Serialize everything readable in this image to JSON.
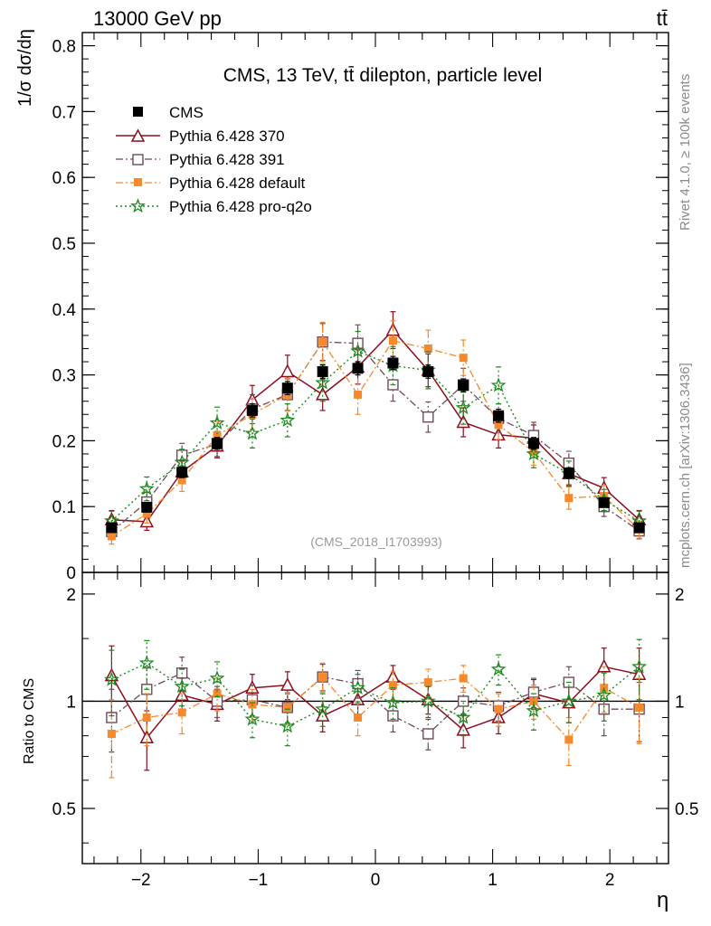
{
  "header": {
    "top_left": "13000 GeV pp",
    "top_right": "tt̄",
    "right_side_top": "Rivet 4.1.0, ≥ 100k events",
    "right_side_bottom": "mcplots.cern.ch [arXiv:1306.3436]",
    "watermark": "(CMS_2018_I1703993)"
  },
  "colors": {
    "cms": "#000000",
    "p370": "#8b0e1e",
    "p391": "#6e4a5c",
    "pdefault": "#f5892b",
    "pproq2o": "#1a8a1a"
  },
  "chart_data": [
    {
      "type": "scatter",
      "title": "CMS, 13 TeV, tt̄ dilepton, particle level",
      "ylabel": "1/σ dσ/dη",
      "xlabel": "",
      "xlim": [
        -2.5,
        2.5
      ],
      "ylim": [
        0,
        0.82
      ],
      "yticks": [
        0.1,
        0.2,
        0.3,
        0.4,
        0.5,
        0.6,
        0.7,
        0.8
      ],
      "ytick_labels": [
        "0.1",
        "0.2",
        "0.3",
        "0.4",
        "0.5",
        "0.6",
        "0.7",
        "0.8"
      ],
      "y_zero_label": "0",
      "legend_position": "top-left",
      "x": [
        -2.25,
        -1.95,
        -1.65,
        -1.35,
        -1.05,
        -0.75,
        -0.45,
        -0.15,
        0.15,
        0.45,
        0.75,
        1.05,
        1.35,
        1.65,
        1.95,
        2.25
      ],
      "series": [
        {
          "name": "CMS",
          "key": "cms",
          "values": [
            0.068,
            0.099,
            0.152,
            0.196,
            0.246,
            0.28,
            0.305,
            0.31,
            0.318,
            0.305,
            0.284,
            0.238,
            0.196,
            0.151,
            0.106,
            0.068
          ],
          "errors": [
            0.006,
            0.007,
            0.008,
            0.009,
            0.01,
            0.01,
            0.01,
            0.01,
            0.01,
            0.01,
            0.01,
            0.01,
            0.009,
            0.008,
            0.007,
            0.006
          ]
        },
        {
          "name": "Pythia 6.428 370",
          "key": "p370",
          "values": [
            0.08,
            0.077,
            0.153,
            0.192,
            0.262,
            0.305,
            0.27,
            0.312,
            0.368,
            0.307,
            0.228,
            0.209,
            0.204,
            0.15,
            0.128,
            0.08
          ],
          "errors": [
            0.014,
            0.013,
            0.016,
            0.018,
            0.022,
            0.025,
            0.024,
            0.026,
            0.028,
            0.025,
            0.022,
            0.02,
            0.02,
            0.017,
            0.016,
            0.014
          ]
        },
        {
          "name": "Pythia 6.428 391",
          "key": "p391",
          "values": [
            0.062,
            0.107,
            0.178,
            0.195,
            0.248,
            0.27,
            0.35,
            0.348,
            0.285,
            0.236,
            0.285,
            0.234,
            0.208,
            0.166,
            0.1,
            0.063
          ],
          "errors": [
            0.012,
            0.015,
            0.018,
            0.019,
            0.022,
            0.024,
            0.028,
            0.028,
            0.025,
            0.023,
            0.025,
            0.022,
            0.02,
            0.018,
            0.015,
            0.012
          ]
        },
        {
          "name": "Pythia 6.428 default",
          "key": "pdefault",
          "values": [
            0.055,
            0.089,
            0.14,
            0.208,
            0.24,
            0.27,
            0.35,
            0.27,
            0.352,
            0.34,
            0.326,
            0.224,
            0.183,
            0.113,
            0.116,
            0.065
          ],
          "errors": [
            0.012,
            0.014,
            0.017,
            0.021,
            0.023,
            0.025,
            0.03,
            0.03,
            0.03,
            0.028,
            0.027,
            0.022,
            0.02,
            0.017,
            0.016,
            0.013
          ]
        },
        {
          "name": "Pythia 6.428 pro-q2o",
          "key": "pproq2o",
          "values": [
            0.078,
            0.127,
            0.167,
            0.227,
            0.211,
            0.231,
            0.288,
            0.336,
            0.314,
            0.307,
            0.25,
            0.284,
            0.18,
            0.15,
            0.11,
            0.078
          ],
          "errors": [
            0.015,
            0.018,
            0.02,
            0.024,
            0.022,
            0.025,
            0.028,
            0.03,
            0.029,
            0.028,
            0.025,
            0.028,
            0.021,
            0.019,
            0.016,
            0.015
          ]
        }
      ]
    },
    {
      "type": "scatter",
      "title": "",
      "ylabel": "Ratio to CMS",
      "xlabel": "η",
      "xlim": [
        -2.5,
        2.5
      ],
      "ylim": [
        0.35,
        2.3
      ],
      "yticks": [
        0.5,
        1,
        2
      ],
      "ytick_labels": [
        "0.5",
        "1",
        "2"
      ],
      "xticks": [
        -2,
        -1,
        0,
        1,
        2
      ],
      "xtick_labels": [
        "−2",
        "−1",
        "0",
        "1",
        "2"
      ],
      "reference_line": 1,
      "x": [
        -2.25,
        -1.95,
        -1.65,
        -1.35,
        -1.05,
        -0.75,
        -0.45,
        -0.15,
        0.15,
        0.45,
        0.75,
        1.05,
        1.35,
        1.65,
        1.95,
        2.25
      ],
      "series": [
        {
          "name": "Pythia 6.428 370",
          "key": "p370",
          "values": [
            1.18,
            0.79,
            1.04,
            0.98,
            1.09,
            1.11,
            0.91,
            1.01,
            1.17,
            1.01,
            0.83,
            0.9,
            1.05,
            0.99,
            1.25,
            1.19
          ],
          "errors": [
            0.25,
            0.15,
            0.12,
            0.1,
            0.1,
            0.1,
            0.09,
            0.09,
            0.09,
            0.09,
            0.09,
            0.09,
            0.1,
            0.12,
            0.16,
            0.22
          ]
        },
        {
          "name": "Pythia 6.428 391",
          "key": "p391",
          "values": [
            0.9,
            1.08,
            1.2,
            1.0,
            1.01,
            0.96,
            1.17,
            1.12,
            0.91,
            0.81,
            1.0,
            0.97,
            1.06,
            1.13,
            0.95,
            0.95
          ],
          "errors": [
            0.18,
            0.16,
            0.13,
            0.1,
            0.1,
            0.09,
            0.1,
            0.1,
            0.09,
            0.08,
            0.09,
            0.09,
            0.1,
            0.12,
            0.15,
            0.18
          ]
        },
        {
          "name": "Pythia 6.428 default",
          "key": "pdefault",
          "values": [
            0.81,
            0.9,
            0.93,
            1.05,
            0.98,
            0.96,
            1.17,
            0.9,
            1.11,
            1.13,
            1.16,
            0.95,
            1.0,
            0.78,
            1.09,
            0.96
          ],
          "errors": [
            0.2,
            0.15,
            0.12,
            0.11,
            0.1,
            0.1,
            0.11,
            0.1,
            0.1,
            0.1,
            0.1,
            0.1,
            0.11,
            0.12,
            0.16,
            0.2
          ]
        },
        {
          "name": "Pythia 6.428 pro-q2o",
          "key": "pproq2o",
          "values": [
            1.15,
            1.28,
            1.1,
            1.16,
            0.89,
            0.85,
            0.95,
            1.09,
            0.99,
            1.0,
            0.9,
            1.23,
            0.94,
            1.0,
            1.04,
            1.25
          ],
          "errors": [
            0.24,
            0.2,
            0.13,
            0.13,
            0.1,
            0.1,
            0.1,
            0.1,
            0.1,
            0.1,
            0.1,
            0.12,
            0.11,
            0.13,
            0.16,
            0.24
          ]
        }
      ]
    }
  ]
}
